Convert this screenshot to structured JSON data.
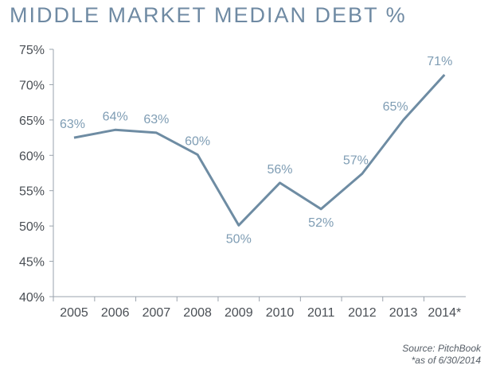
{
  "chart_data": {
    "type": "line",
    "title": "MIDDLE MARKET MEDIAN DEBT %",
    "xlabel": "",
    "ylabel": "",
    "categories": [
      "2005",
      "2006",
      "2007",
      "2008",
      "2009",
      "2010",
      "2011",
      "2012",
      "2013",
      "2014*"
    ],
    "values": [
      62.5,
      63.6,
      63.2,
      60.1,
      50.1,
      56.1,
      52.4,
      57.4,
      65.0,
      71.4
    ],
    "data_labels": [
      "63%",
      "64%",
      "63%",
      "60%",
      "50%",
      "56%",
      "52%",
      "57%",
      "65%",
      "71%"
    ],
    "ylim": [
      40,
      75
    ],
    "yticks": [
      "40%",
      "45%",
      "50%",
      "55%",
      "60%",
      "65%",
      "70%",
      "75%"
    ],
    "grid": false,
    "legend": "none",
    "line_color": "#6e8ca3",
    "label_color": "#7f9db4",
    "axis_text_color": "#4a4f55"
  },
  "footnotes": {
    "source": "Source: PitchBook",
    "as_of": "*as of 6/30/2014"
  }
}
